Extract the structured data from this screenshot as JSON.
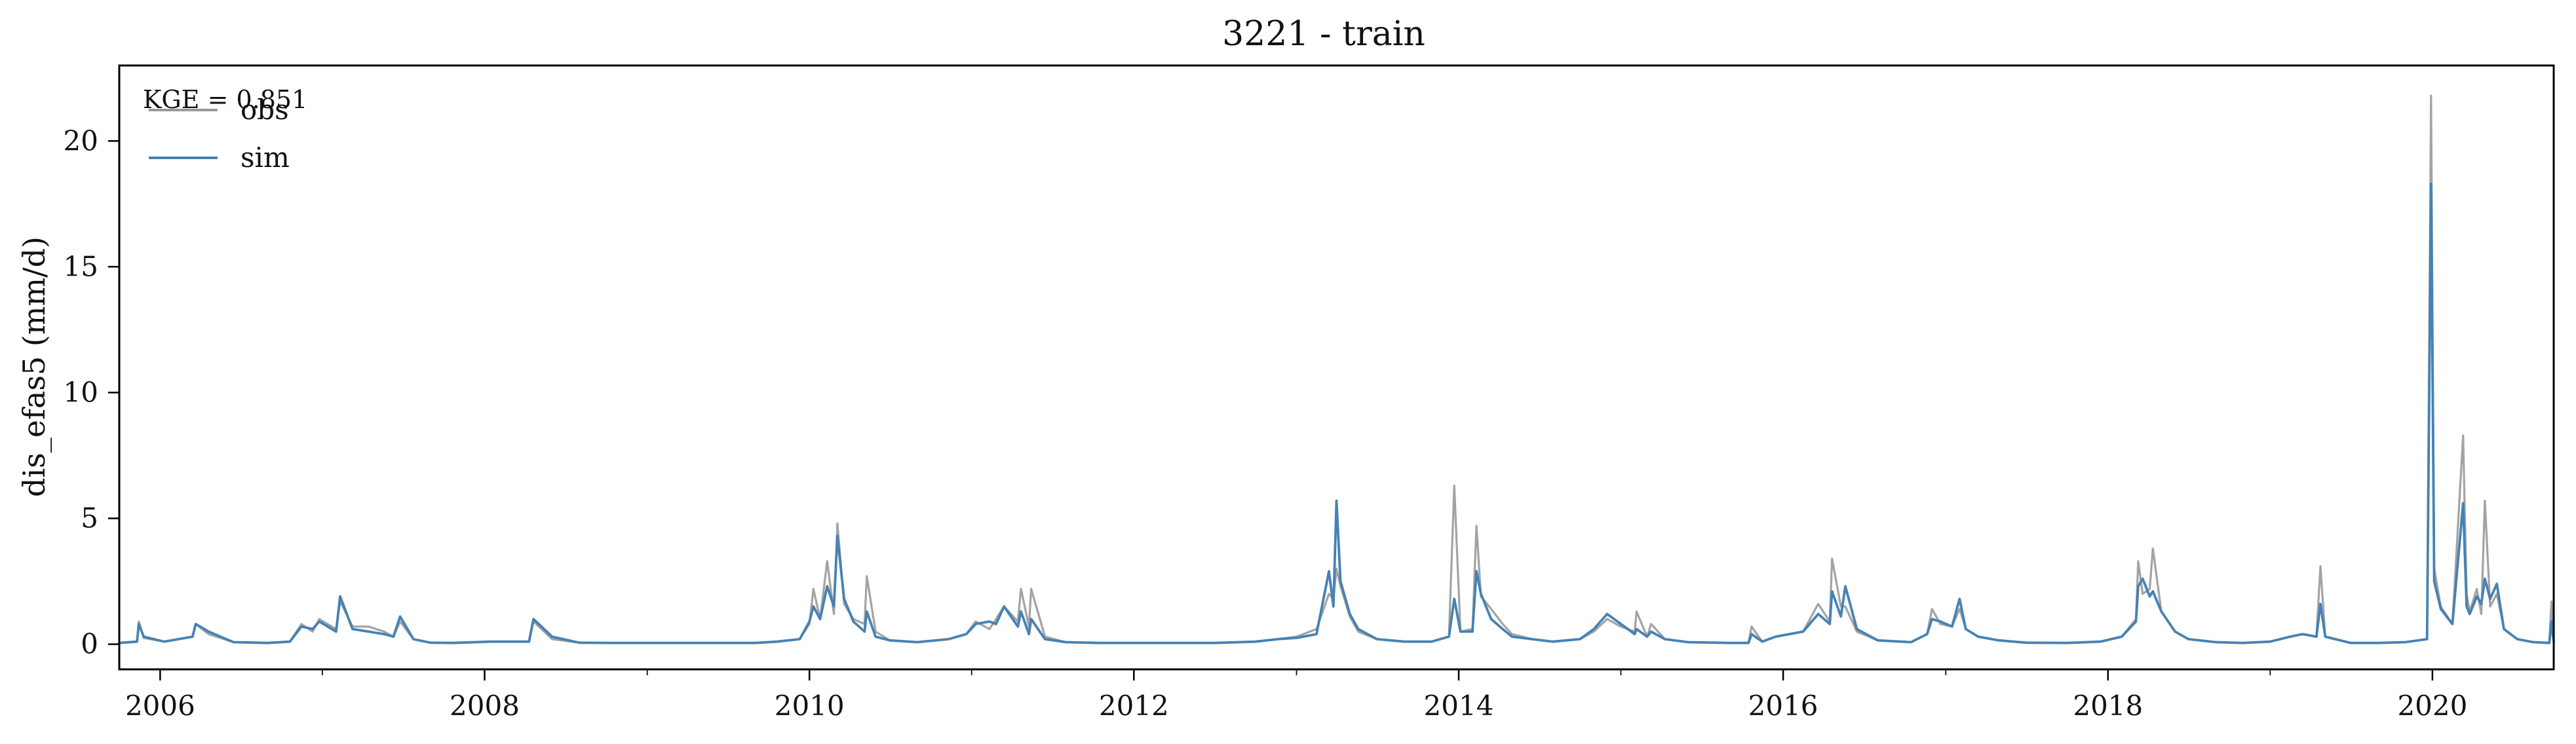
{
  "chart_data": {
    "type": "line",
    "title": "3221 - train",
    "ylabel": "dis_efas5 (mm/d)",
    "xlabel": "",
    "xlim": [
      "2005-10-01",
      "2020-09-30"
    ],
    "ylim": [
      -1,
      23
    ],
    "x_ticks": [
      "2006",
      "2008",
      "2010",
      "2012",
      "2014",
      "2016",
      "2018",
      "2020"
    ],
    "y_ticks": [
      "0",
      "5",
      "10",
      "15",
      "20"
    ],
    "annotation": "KGE = 0.851",
    "grid": false,
    "legend_position": "top-left",
    "series": [
      {
        "name": "obs",
        "color": "#999999",
        "x": [
          "2005-10-01",
          "2005-11-10",
          "2005-11-14",
          "2005-11-25",
          "2006-01-10",
          "2006-03-15",
          "2006-03-22",
          "2006-04-20",
          "2006-06-15",
          "2006-09-01",
          "2006-10-20",
          "2006-11-15",
          "2006-12-10",
          "2006-12-25",
          "2007-02-01",
          "2007-02-10",
          "2007-03-10",
          "2007-04-15",
          "2007-05-20",
          "2007-06-10",
          "2007-06-25",
          "2007-07-25",
          "2007-09-01",
          "2007-10-20",
          "2008-01-15",
          "2008-04-10",
          "2008-04-20",
          "2008-06-01",
          "2008-08-01",
          "2008-10-15",
          "2009-01-15",
          "2009-04-10",
          "2009-06-01",
          "2009-09-01",
          "2009-10-20",
          "2009-12-10",
          "2010-01-01",
          "2010-01-10",
          "2010-01-25",
          "2010-02-10",
          "2010-02-25",
          "2010-03-05",
          "2010-03-20",
          "2010-04-10",
          "2010-05-05",
          "2010-05-10",
          "2010-05-30",
          "2010-07-01",
          "2010-09-01",
          "2010-11-10",
          "2010-12-20",
          "2011-01-10",
          "2011-02-10",
          "2011-02-25",
          "2011-03-15",
          "2011-04-15",
          "2011-04-22",
          "2011-05-10",
          "2011-05-15",
          "2011-06-15",
          "2011-08-01",
          "2011-10-15",
          "2012-01-15",
          "2012-04-10",
          "2012-07-01",
          "2012-10-01",
          "2012-11-20",
          "2013-01-01",
          "2013-02-15",
          "2013-03-15",
          "2013-03-25",
          "2013-04-01",
          "2013-04-10",
          "2013-05-01",
          "2013-05-20",
          "2013-07-01",
          "2013-09-01",
          "2013-11-01",
          "2013-12-10",
          "2013-12-22",
          "2014-01-05",
          "2014-02-01",
          "2014-02-10",
          "2014-02-20",
          "2014-03-15",
          "2014-04-10",
          "2014-05-01",
          "2014-06-15",
          "2014-08-01",
          "2014-10-01",
          "2014-11-01",
          "2014-12-01",
          "2015-01-01",
          "2015-02-01",
          "2015-02-05",
          "2015-03-01",
          "2015-03-10",
          "2015-04-10",
          "2015-06-01",
          "2015-09-01",
          "2015-10-15",
          "2015-10-22",
          "2015-11-15",
          "2015-12-15",
          "2016-02-15",
          "2016-03-20",
          "2016-04-15",
          "2016-04-20",
          "2016-05-10",
          "2016-05-20",
          "2016-06-15",
          "2016-08-01",
          "2016-10-15",
          "2016-11-20",
          "2016-12-01",
          "2016-12-20",
          "2017-01-15",
          "2017-02-01",
          "2017-02-15",
          "2017-03-15",
          "2017-05-01",
          "2017-07-01",
          "2017-10-01",
          "2017-12-15",
          "2018-02-01",
          "2018-03-05",
          "2018-03-10",
          "2018-03-20",
          "2018-04-05",
          "2018-04-12",
          "2018-05-01",
          "2018-06-01",
          "2018-07-01",
          "2018-09-01",
          "2018-11-01",
          "2019-01-01",
          "2019-02-15",
          "2019-03-15",
          "2019-04-15",
          "2019-04-24",
          "2019-05-05",
          "2019-07-01",
          "2019-09-01",
          "2019-11-01",
          "2019-12-20",
          "2019-12-29",
          "2020-01-05",
          "2020-01-20",
          "2020-02-15",
          "2020-03-10",
          "2020-03-18",
          "2020-03-25",
          "2020-04-10",
          "2020-04-20",
          "2020-04-28",
          "2020-05-10",
          "2020-05-25",
          "2020-06-10",
          "2020-07-10",
          "2020-08-15",
          "2020-09-20",
          "2020-09-25",
          "2020-09-30"
        ],
        "values": [
          0.05,
          0.1,
          0.9,
          0.25,
          0.1,
          0.3,
          0.8,
          0.4,
          0.08,
          0.05,
          0.1,
          0.8,
          0.5,
          1.0,
          0.6,
          1.7,
          0.7,
          0.7,
          0.5,
          0.3,
          0.9,
          0.2,
          0.06,
          0.05,
          0.1,
          0.1,
          0.9,
          0.2,
          0.06,
          0.05,
          0.05,
          0.05,
          0.05,
          0.05,
          0.1,
          0.2,
          0.8,
          2.2,
          1.0,
          3.3,
          1.2,
          4.8,
          1.6,
          1.0,
          0.8,
          2.7,
          0.5,
          0.15,
          0.08,
          0.2,
          0.4,
          0.9,
          0.6,
          1.0,
          1.5,
          0.9,
          2.2,
          0.7,
          2.2,
          0.3,
          0.08,
          0.05,
          0.05,
          0.05,
          0.05,
          0.1,
          0.2,
          0.3,
          0.6,
          2.0,
          1.8,
          3.0,
          2.3,
          1.1,
          0.5,
          0.2,
          0.1,
          0.1,
          0.3,
          6.3,
          0.5,
          0.6,
          4.7,
          1.9,
          1.4,
          0.8,
          0.4,
          0.2,
          0.1,
          0.2,
          0.5,
          1.0,
          0.7,
          0.5,
          1.3,
          0.3,
          0.8,
          0.2,
          0.08,
          0.05,
          0.05,
          0.7,
          0.1,
          0.3,
          0.5,
          1.6,
          0.9,
          3.4,
          1.5,
          1.5,
          0.5,
          0.15,
          0.08,
          0.4,
          1.4,
          0.8,
          0.7,
          1.4,
          0.6,
          0.3,
          0.15,
          0.06,
          0.05,
          0.1,
          0.3,
          1.0,
          3.3,
          2.0,
          2.2,
          3.8,
          1.3,
          0.5,
          0.2,
          0.08,
          0.05,
          0.1,
          0.3,
          0.4,
          0.3,
          3.1,
          0.3,
          0.05,
          0.05,
          0.08,
          0.2,
          21.8,
          3.0,
          1.5,
          0.8,
          8.3,
          2.0,
          1.3,
          2.2,
          1.2,
          5.7,
          1.5,
          2.0,
          0.6,
          0.2,
          0.08,
          0.05,
          1.7,
          0.1
        ]
      },
      {
        "name": "sim",
        "color": "#4682b4",
        "x": [
          "2005-10-01",
          "2005-11-10",
          "2005-11-14",
          "2005-11-25",
          "2006-01-10",
          "2006-03-15",
          "2006-03-22",
          "2006-04-20",
          "2006-06-15",
          "2006-09-01",
          "2006-10-20",
          "2006-11-15",
          "2006-12-10",
          "2006-12-25",
          "2007-02-01",
          "2007-02-10",
          "2007-03-10",
          "2007-04-15",
          "2007-05-20",
          "2007-06-10",
          "2007-06-25",
          "2007-07-25",
          "2007-09-01",
          "2007-10-20",
          "2008-01-15",
          "2008-04-10",
          "2008-04-20",
          "2008-06-01",
          "2008-08-01",
          "2008-10-15",
          "2009-01-15",
          "2009-04-10",
          "2009-06-01",
          "2009-09-01",
          "2009-10-20",
          "2009-12-10",
          "2010-01-01",
          "2010-01-10",
          "2010-01-25",
          "2010-02-10",
          "2010-02-25",
          "2010-03-05",
          "2010-03-20",
          "2010-04-10",
          "2010-05-05",
          "2010-05-10",
          "2010-05-30",
          "2010-07-01",
          "2010-09-01",
          "2010-11-10",
          "2010-12-20",
          "2011-01-10",
          "2011-02-10",
          "2011-02-25",
          "2011-03-15",
          "2011-04-15",
          "2011-04-22",
          "2011-05-10",
          "2011-05-15",
          "2011-06-15",
          "2011-08-01",
          "2011-10-15",
          "2012-01-15",
          "2012-04-10",
          "2012-07-01",
          "2012-10-01",
          "2012-11-20",
          "2013-01-01",
          "2013-02-15",
          "2013-03-15",
          "2013-03-25",
          "2013-04-01",
          "2013-04-10",
          "2013-05-01",
          "2013-05-20",
          "2013-07-01",
          "2013-09-01",
          "2013-11-01",
          "2013-12-10",
          "2013-12-22",
          "2014-01-05",
          "2014-02-01",
          "2014-02-10",
          "2014-02-20",
          "2014-03-15",
          "2014-04-10",
          "2014-05-01",
          "2014-06-15",
          "2014-08-01",
          "2014-10-01",
          "2014-11-01",
          "2014-12-01",
          "2015-01-01",
          "2015-02-01",
          "2015-02-05",
          "2015-03-01",
          "2015-03-10",
          "2015-04-10",
          "2015-06-01",
          "2015-09-01",
          "2015-10-15",
          "2015-10-22",
          "2015-11-15",
          "2015-12-15",
          "2016-02-15",
          "2016-03-20",
          "2016-04-15",
          "2016-04-20",
          "2016-05-10",
          "2016-05-20",
          "2016-06-15",
          "2016-08-01",
          "2016-10-15",
          "2016-11-20",
          "2016-12-01",
          "2016-12-20",
          "2017-01-15",
          "2017-02-01",
          "2017-02-15",
          "2017-03-15",
          "2017-05-01",
          "2017-07-01",
          "2017-10-01",
          "2017-12-15",
          "2018-02-01",
          "2018-03-05",
          "2018-03-10",
          "2018-03-20",
          "2018-04-05",
          "2018-04-12",
          "2018-05-01",
          "2018-06-01",
          "2018-07-01",
          "2018-09-01",
          "2018-11-01",
          "2019-01-01",
          "2019-02-15",
          "2019-03-15",
          "2019-04-15",
          "2019-04-24",
          "2019-05-05",
          "2019-07-01",
          "2019-09-01",
          "2019-11-01",
          "2019-12-20",
          "2019-12-29",
          "2020-01-05",
          "2020-01-20",
          "2020-02-15",
          "2020-03-10",
          "2020-03-18",
          "2020-03-25",
          "2020-04-10",
          "2020-04-20",
          "2020-04-28",
          "2020-05-10",
          "2020-05-25",
          "2020-06-10",
          "2020-07-10",
          "2020-08-15",
          "2020-09-20",
          "2020-09-25",
          "2020-09-30"
        ],
        "values": [
          0.05,
          0.1,
          0.8,
          0.3,
          0.1,
          0.3,
          0.8,
          0.5,
          0.08,
          0.05,
          0.1,
          0.7,
          0.6,
          0.9,
          0.5,
          1.9,
          0.6,
          0.5,
          0.4,
          0.3,
          1.1,
          0.2,
          0.06,
          0.05,
          0.1,
          0.1,
          1.0,
          0.3,
          0.06,
          0.05,
          0.05,
          0.05,
          0.05,
          0.05,
          0.1,
          0.2,
          0.9,
          1.5,
          1.0,
          2.3,
          1.5,
          4.3,
          1.8,
          0.9,
          0.5,
          1.3,
          0.3,
          0.15,
          0.08,
          0.2,
          0.4,
          0.8,
          0.9,
          0.8,
          1.5,
          0.7,
          1.3,
          0.4,
          1.0,
          0.2,
          0.08,
          0.05,
          0.05,
          0.05,
          0.05,
          0.1,
          0.2,
          0.25,
          0.4,
          2.9,
          1.5,
          5.7,
          2.5,
          1.2,
          0.6,
          0.2,
          0.1,
          0.1,
          0.3,
          1.8,
          0.5,
          0.5,
          2.9,
          2.0,
          1.0,
          0.6,
          0.3,
          0.2,
          0.1,
          0.2,
          0.6,
          1.2,
          0.8,
          0.4,
          0.6,
          0.3,
          0.5,
          0.2,
          0.08,
          0.05,
          0.05,
          0.4,
          0.1,
          0.3,
          0.5,
          1.2,
          0.8,
          2.1,
          1.1,
          2.3,
          0.6,
          0.15,
          0.08,
          0.4,
          1.0,
          0.9,
          0.7,
          1.8,
          0.6,
          0.3,
          0.15,
          0.06,
          0.05,
          0.1,
          0.3,
          0.9,
          2.3,
          2.6,
          1.9,
          2.1,
          1.3,
          0.5,
          0.2,
          0.08,
          0.05,
          0.1,
          0.3,
          0.4,
          0.3,
          1.6,
          0.3,
          0.05,
          0.05,
          0.08,
          0.2,
          18.3,
          2.5,
          1.4,
          0.8,
          5.6,
          1.5,
          1.2,
          1.9,
          1.6,
          2.6,
          1.8,
          2.4,
          0.6,
          0.2,
          0.08,
          0.05,
          0.9,
          0.1
        ]
      }
    ]
  }
}
